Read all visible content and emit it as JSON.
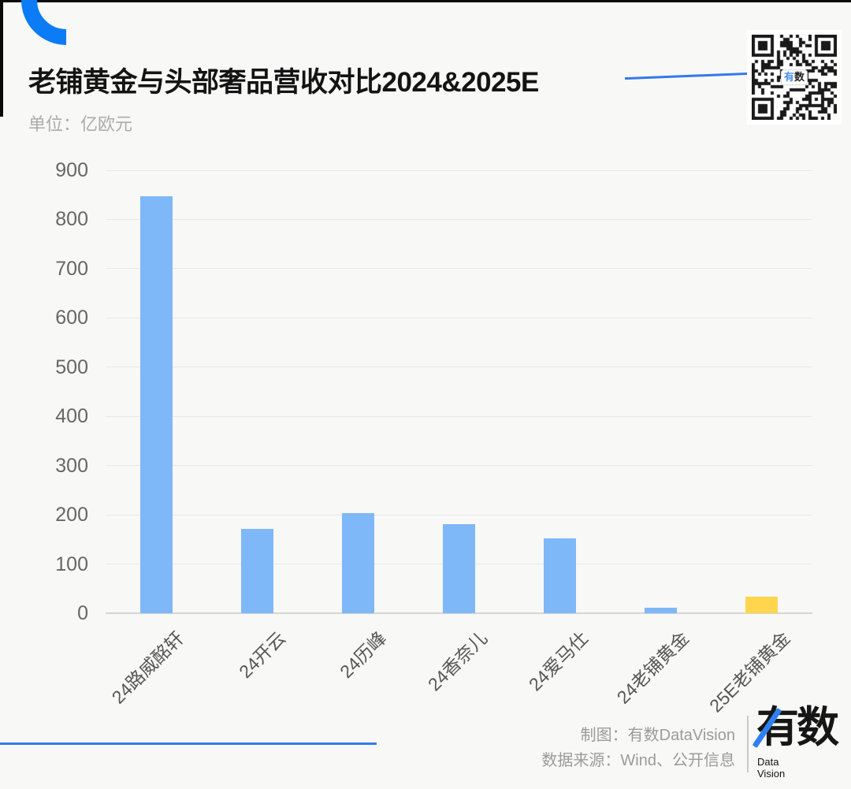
{
  "title": "老铺黄金与头部奢品营收对比2024&2025E",
  "unit_label": "单位：亿欧元",
  "chart_data": {
    "type": "bar",
    "categories": [
      "24路威酩轩",
      "24开云",
      "24历峰",
      "24香奈儿",
      "24爱马仕",
      "24老铺黄金",
      "25E老铺黄金"
    ],
    "values": [
      847,
      172,
      204,
      181,
      152,
      11,
      33
    ],
    "bar_colors": [
      "#7EB8F8",
      "#7EB8F8",
      "#7EB8F8",
      "#7EB8F8",
      "#7EB8F8",
      "#7EB8F8",
      "#FFD54D"
    ],
    "highlight_index": 6,
    "title": "老铺黄金与头部奢品营收对比2024&2025E",
    "xlabel": "",
    "ylabel": "亿欧元",
    "ylim": [
      0,
      900
    ],
    "yticks": [
      0,
      100,
      200,
      300,
      400,
      500,
      600,
      700,
      800,
      900
    ],
    "grid": true,
    "legend": false
  },
  "qr": {
    "label_char1": "有",
    "label_char2": "数"
  },
  "footer": {
    "credit": "制图：有数DataVision",
    "source": "数据来源：Wind、公开信息",
    "logo_text": "有数",
    "logo_sub_line1": "Data",
    "logo_sub_line2": "Vision"
  },
  "colors": {
    "bar_blue": "#7EB8F8",
    "bar_highlight_yellow": "#FFD54D",
    "accent_blue": "#0B7CF5",
    "connector_blue": "#3478EC"
  }
}
